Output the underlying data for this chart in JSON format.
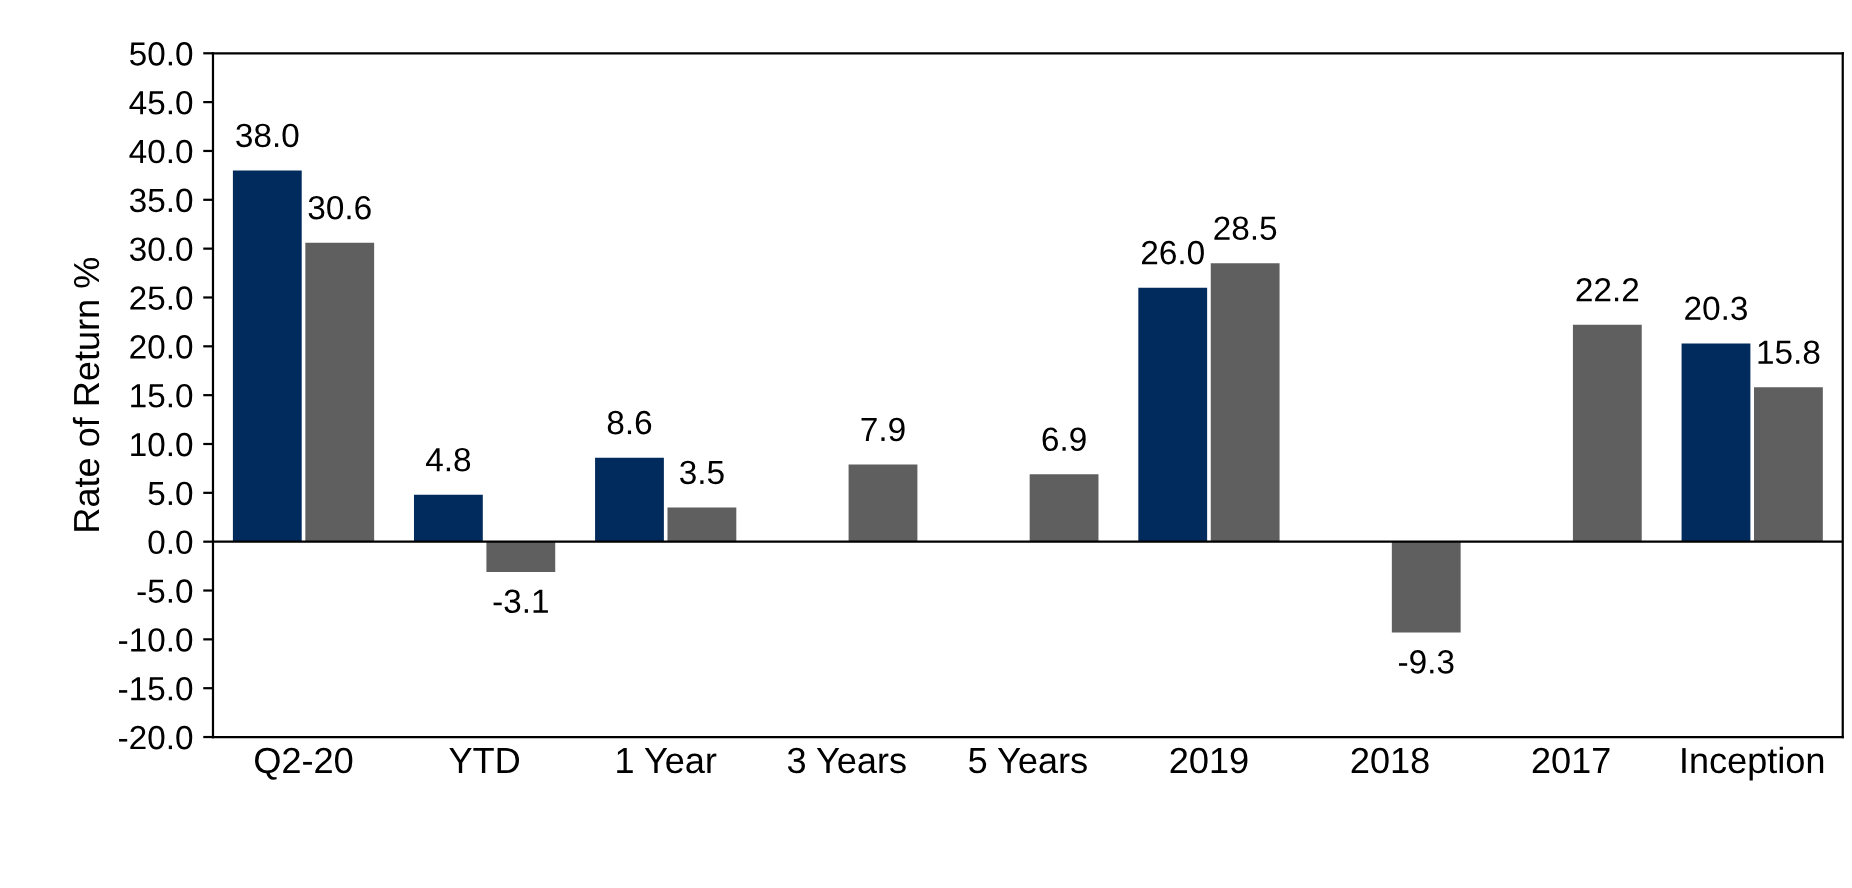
{
  "chart_data": {
    "type": "bar",
    "ylabel": "Rate of Return %",
    "categories": [
      "Q2-20",
      "YTD",
      "1 Year",
      "3 Years",
      "5 Years",
      "2019",
      "2018",
      "2017",
      "Inception"
    ],
    "series": [
      {
        "color": "#002b5c",
        "values": [
          38.0,
          4.8,
          8.6,
          null,
          null,
          26.0,
          null,
          null,
          20.3
        ],
        "value_labels": [
          "38.0",
          "4.8",
          "8.6",
          null,
          null,
          "26.0",
          null,
          null,
          "20.3"
        ]
      },
      {
        "color": "#5f5f5f",
        "values": [
          30.6,
          -3.1,
          3.5,
          7.9,
          6.9,
          28.5,
          -9.3,
          22.2,
          15.8
        ],
        "value_labels": [
          "30.6",
          "-3.1",
          "3.5",
          "7.9",
          "6.9",
          "28.5",
          "-9.3",
          "22.2",
          "15.8"
        ]
      }
    ],
    "ylim": [
      -20,
      50
    ],
    "yticks": [
      {
        "value": -20,
        "label": "-20.0"
      },
      {
        "value": -15,
        "label": "-15.0"
      },
      {
        "value": -10,
        "label": "-10.0"
      },
      {
        "value": -5,
        "label": "-5.0"
      },
      {
        "value": 0,
        "label": "0.0"
      },
      {
        "value": 5,
        "label": "5.0"
      },
      {
        "value": 10,
        "label": "10.0"
      },
      {
        "value": 15,
        "label": "15.0"
      },
      {
        "value": 20,
        "label": "20.0"
      },
      {
        "value": 25,
        "label": "25.0"
      },
      {
        "value": 30,
        "label": "30.0"
      },
      {
        "value": 35,
        "label": "35.0"
      },
      {
        "value": 40,
        "label": "40.0"
      },
      {
        "value": 45,
        "label": "45.0"
      },
      {
        "value": 50,
        "label": "50.0"
      }
    ],
    "ref_lines": [
      {
        "axis": "y",
        "value": 0,
        "color": "#000000"
      }
    ],
    "grid": false,
    "legend": false
  }
}
